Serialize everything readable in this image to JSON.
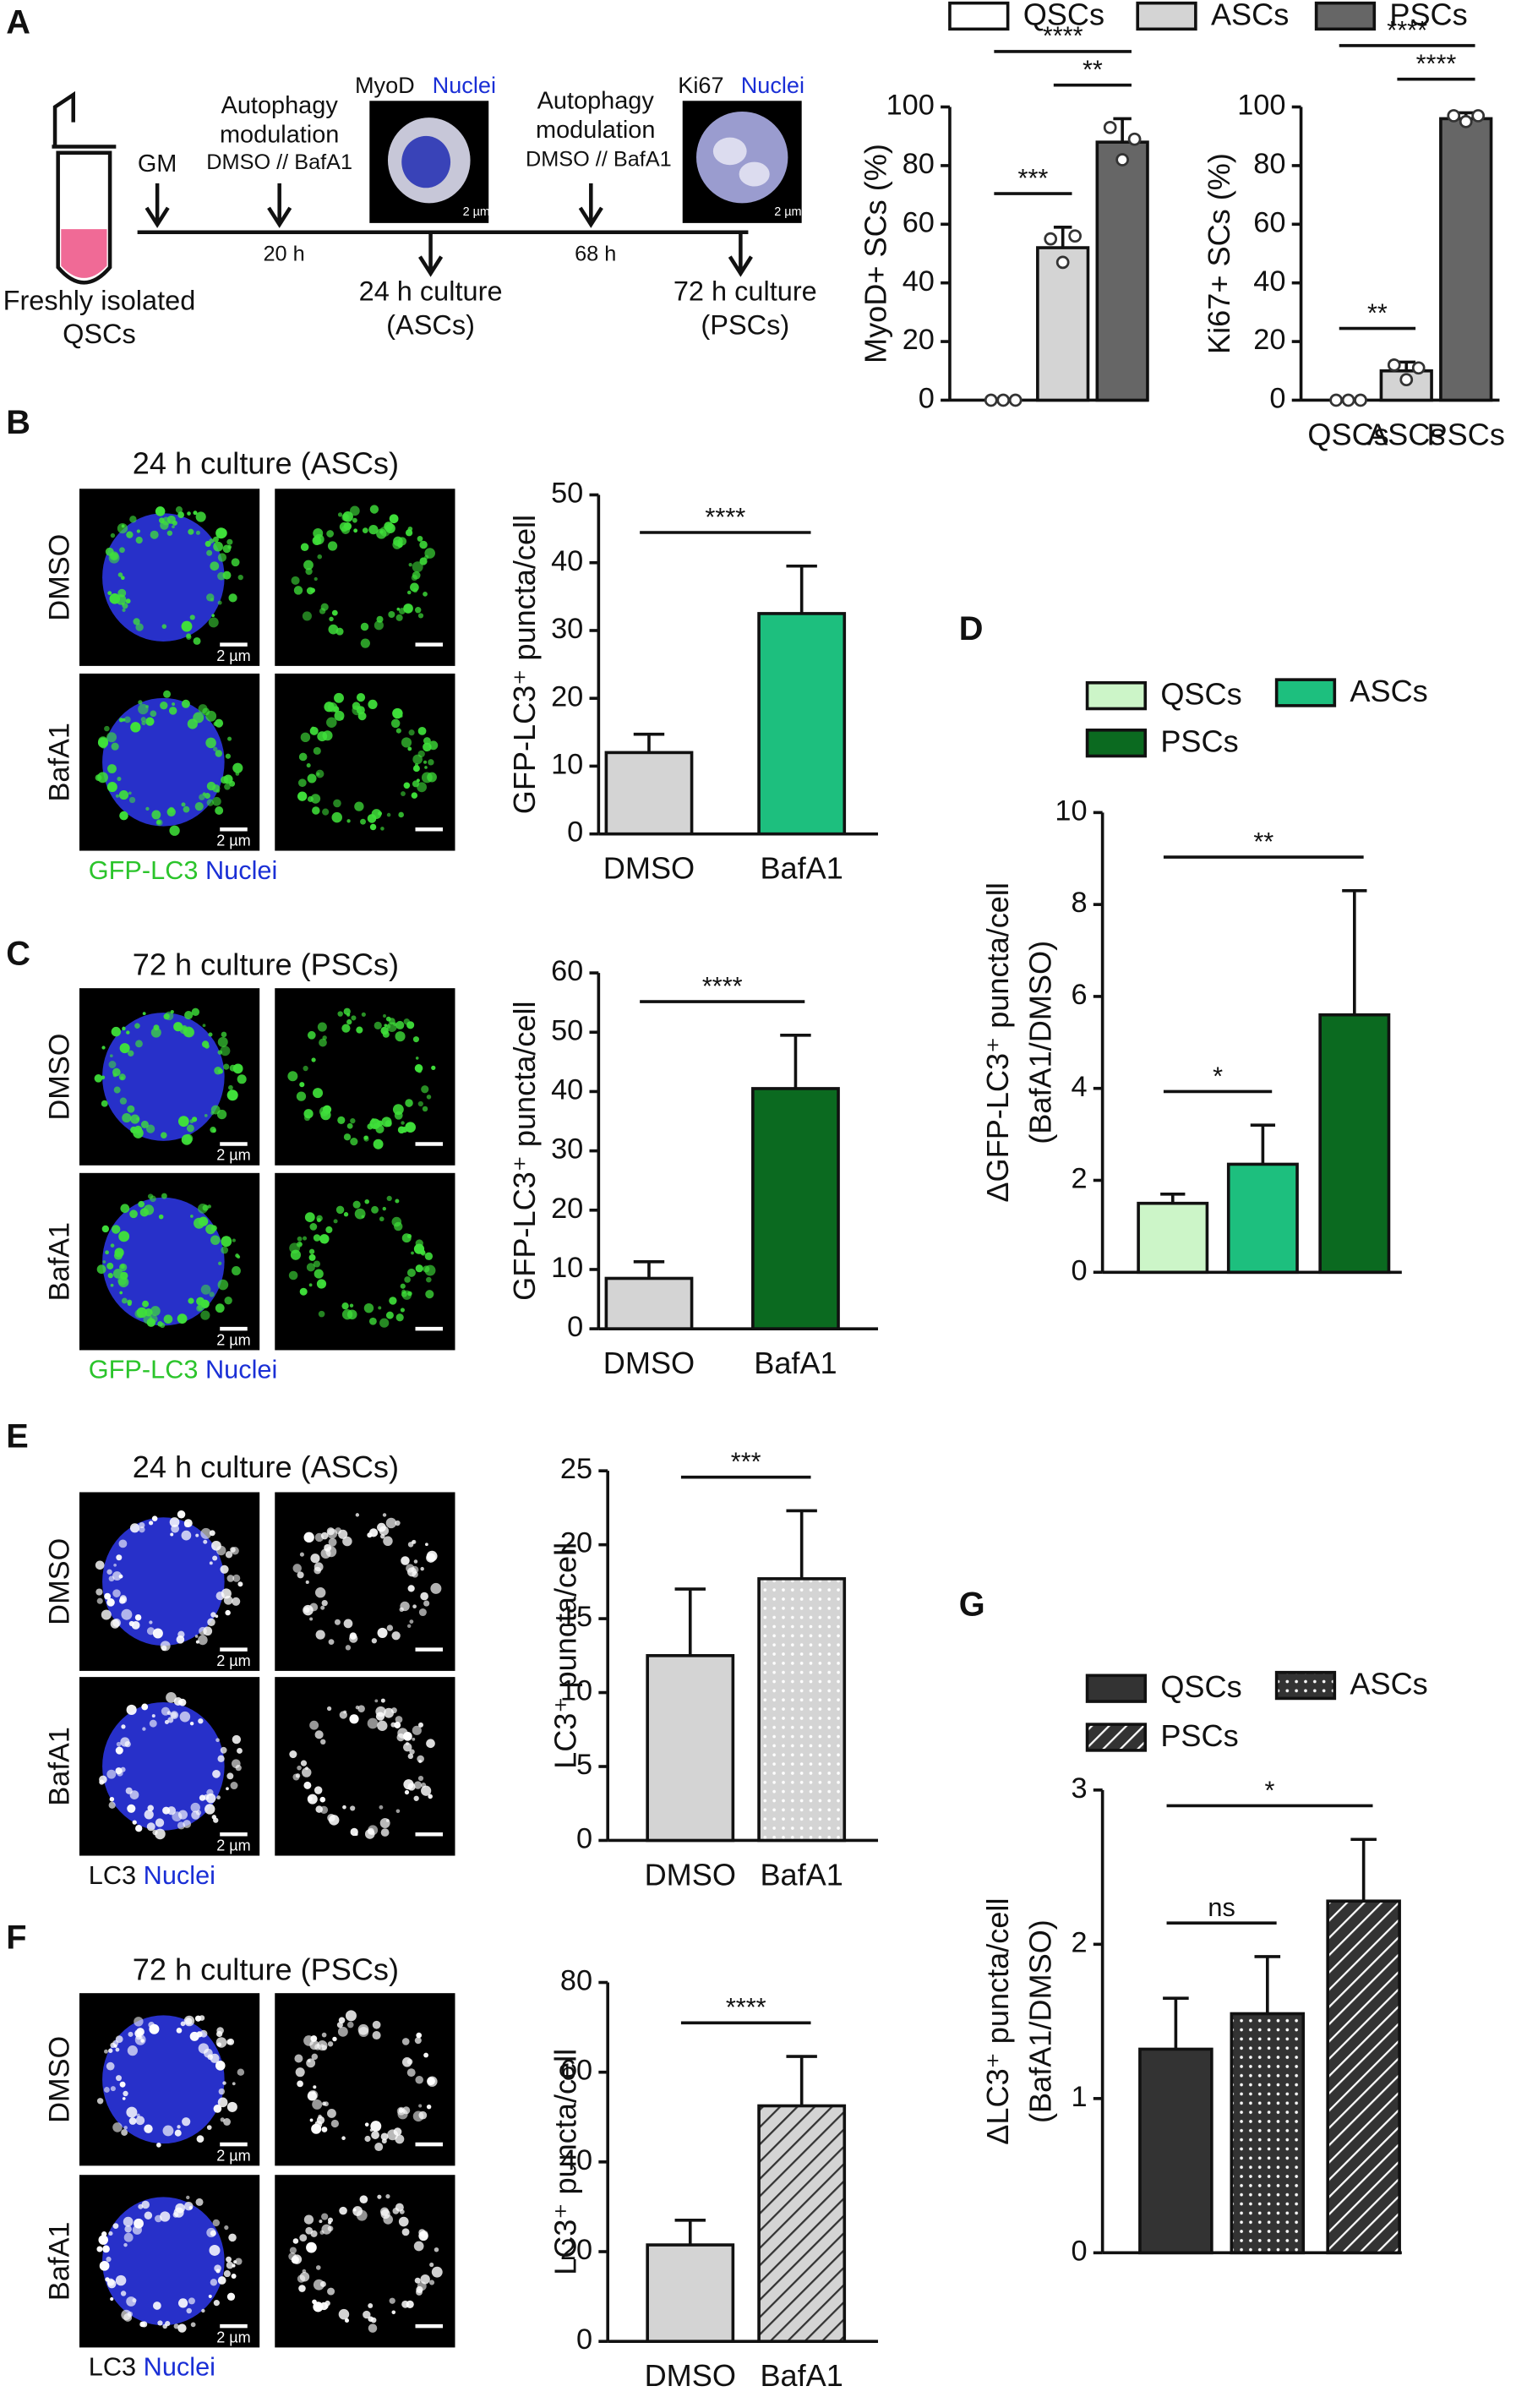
{
  "figure": {
    "panel_labels": [
      "A",
      "B",
      "C",
      "D",
      "E",
      "F",
      "G"
    ],
    "schematic": {
      "gm": "GM",
      "autophagy": "Autophagy",
      "modulation": "modulation",
      "treatment": "DMSO // BafA1",
      "time1": "20 h",
      "time2": "68 h",
      "culture1": "24 h culture",
      "cells1": "(ASCs)",
      "culture2": "72 h culture",
      "cells2": "(PSCs)",
      "source1": "Freshly isolated",
      "source2": "QSCs",
      "inset1_marker": "MyoD",
      "inset2_marker": "Ki67",
      "nuclei": "Nuclei"
    },
    "scale_bar": "2 µm",
    "image_panels": [
      {
        "title": "24 h culture (ASCs)",
        "rows": [
          "DMSO",
          "BafA1"
        ],
        "stain": "GFP-LC3",
        "nuclei": "Nuclei"
      },
      {
        "title": "72 h culture (PSCs)",
        "rows": [
          "DMSO",
          "BafA1"
        ],
        "stain": "GFP-LC3",
        "nuclei": "Nuclei"
      },
      {
        "title": "24 h culture (ASCs)",
        "rows": [
          "DMSO",
          "BafA1"
        ],
        "stain": "LC3",
        "nuclei": "Nuclei"
      },
      {
        "title": "72 h culture (PSCs)",
        "rows": [
          "DMSO",
          "BafA1"
        ],
        "stain": "LC3",
        "nuclei": "Nuclei"
      }
    ]
  },
  "chart_data": [
    {
      "type": "bar",
      "ylabel": [
        "MyoD+ SCs (%)"
      ],
      "categories": [
        "QSCs",
        "ASCs",
        "PSCs"
      ],
      "values": [
        0,
        52,
        88
      ],
      "errors": [
        0,
        7,
        8
      ],
      "points": [
        [
          0,
          0,
          0
        ],
        [
          55,
          47,
          56
        ],
        [
          93,
          82,
          89
        ]
      ],
      "colors": [
        "#ffffff",
        "#d4d4d4",
        "#666666"
      ],
      "patterns": [
        "solid",
        "solid",
        "solid"
      ],
      "ylim": [
        0,
        100
      ],
      "yticks": [
        0,
        20,
        40,
        60,
        80,
        100
      ],
      "legend": true,
      "significance": [
        {
          "pair": [
            "QSCs",
            "PSCs"
          ],
          "label": "****"
        },
        {
          "pair": [
            "QSCs",
            "ASCs"
          ],
          "label": "***"
        },
        {
          "pair": [
            "ASCs",
            "PSCs"
          ],
          "label": "**"
        }
      ]
    },
    {
      "type": "bar",
      "ylabel": [
        "Ki67+ SCs (%)"
      ],
      "categories": [
        "QSCs",
        "ASCs",
        "PSCs"
      ],
      "values": [
        0,
        10,
        96
      ],
      "errors": [
        0,
        3,
        2
      ],
      "points": [
        [
          0,
          0,
          0
        ],
        [
          12,
          7,
          11
        ],
        [
          97,
          95,
          97
        ]
      ],
      "colors": [
        "#ffffff",
        "#d4d4d4",
        "#666666"
      ],
      "patterns": [
        "solid",
        "solid",
        "solid"
      ],
      "ylim": [
        0,
        100
      ],
      "yticks": [
        0,
        20,
        40,
        60,
        80,
        100
      ],
      "legend": false,
      "significance": [
        {
          "pair": [
            "QSCs",
            "PSCs"
          ],
          "label": "****"
        },
        {
          "pair": [
            "QSCs",
            "ASCs"
          ],
          "label": "**"
        },
        {
          "pair": [
            "ASCs",
            "PSCs"
          ],
          "label": "****"
        }
      ]
    },
    {
      "type": "bar",
      "ylabel": [
        "GFP-LC3⁺ puncta/cell"
      ],
      "categories": [
        "DMSO",
        "BafA1"
      ],
      "values": [
        12,
        32.5
      ],
      "errors": [
        2.7,
        7
      ],
      "colors": [
        "#d4d4d4",
        "#1dbf7e"
      ],
      "patterns": [
        "solid",
        "solid"
      ],
      "ylim": [
        0,
        50
      ],
      "yticks": [
        0,
        10,
        20,
        30,
        40,
        50
      ],
      "legend": false,
      "significance": [
        {
          "pair": [
            "DMSO",
            "BafA1"
          ],
          "label": "****"
        }
      ]
    },
    {
      "type": "bar",
      "ylabel": [
        "GFP-LC3⁺ puncta/cell"
      ],
      "categories": [
        "DMSO",
        "BafA1"
      ],
      "values": [
        8.5,
        40.5
      ],
      "errors": [
        2.8,
        9
      ],
      "colors": [
        "#d4d4d4",
        "#0b6a20"
      ],
      "patterns": [
        "solid",
        "solid"
      ],
      "ylim": [
        0,
        60
      ],
      "yticks": [
        0,
        10,
        20,
        30,
        40,
        50,
        60
      ],
      "legend": false,
      "significance": [
        {
          "pair": [
            "DMSO",
            "BafA1"
          ],
          "label": "****"
        }
      ]
    },
    {
      "type": "bar",
      "ylabel": [
        "ΔGFP-LC3⁺ puncta/cell",
        "(BafA1/DMSO)"
      ],
      "categories": [
        "QSCs",
        "ASCs",
        "PSCs"
      ],
      "values": [
        1.5,
        2.35,
        5.6
      ],
      "errors": [
        0.2,
        0.85,
        2.7
      ],
      "colors": [
        "#ccf5c8",
        "#1dbf7e",
        "#0b6a20"
      ],
      "patterns": [
        "solid",
        "solid",
        "solid"
      ],
      "ylim": [
        0,
        10
      ],
      "yticks": [
        0,
        2,
        4,
        6,
        8,
        10
      ],
      "legend": true,
      "significance": [
        {
          "pair": [
            "QSCs",
            "ASCs"
          ],
          "label": "*"
        },
        {
          "pair": [
            "QSCs",
            "PSCs"
          ],
          "label": "**"
        }
      ]
    },
    {
      "type": "bar",
      "ylabel": [
        "LC3⁺ puncta/cell"
      ],
      "categories": [
        "DMSO",
        "BafA1"
      ],
      "values": [
        12.5,
        17.7
      ],
      "errors": [
        4.5,
        4.6
      ],
      "colors": [
        "#d4d4d4",
        "#d4d4d4"
      ],
      "patterns": [
        "solid",
        "dots"
      ],
      "ylim": [
        0,
        25
      ],
      "yticks": [
        0,
        5,
        10,
        15,
        20,
        25
      ],
      "legend": false,
      "significance": [
        {
          "pair": [
            "DMSO",
            "BafA1"
          ],
          "label": "***"
        }
      ]
    },
    {
      "type": "bar",
      "ylabel": [
        "LC3⁺ puncta/cell"
      ],
      "categories": [
        "DMSO",
        "BafA1"
      ],
      "values": [
        21.5,
        52.5
      ],
      "errors": [
        5.5,
        11
      ],
      "colors": [
        "#d4d4d4",
        "#d4d4d4"
      ],
      "patterns": [
        "solid",
        "hatch"
      ],
      "ylim": [
        0,
        80
      ],
      "yticks": [
        0,
        20,
        40,
        60,
        80
      ],
      "legend": false,
      "significance": [
        {
          "pair": [
            "DMSO",
            "BafA1"
          ],
          "label": "****"
        }
      ]
    },
    {
      "type": "bar",
      "ylabel": [
        "ΔLC3⁺ puncta/cell",
        "(BafA1/DMSO)"
      ],
      "categories": [
        "QSCs",
        "ASCs",
        "PSCs"
      ],
      "values": [
        1.32,
        1.55,
        2.28
      ],
      "errors": [
        0.33,
        0.37,
        0.4
      ],
      "colors": [
        "#333333",
        "#333333",
        "#333333"
      ],
      "patterns": [
        "solid",
        "dots",
        "hatch"
      ],
      "ylim": [
        0,
        3
      ],
      "yticks": [
        0,
        1,
        2,
        3
      ],
      "legend": true,
      "significance": [
        {
          "pair": [
            "QSCs",
            "ASCs"
          ],
          "label": "ns"
        },
        {
          "pair": [
            "QSCs",
            "PSCs"
          ],
          "label": "*"
        }
      ]
    }
  ]
}
